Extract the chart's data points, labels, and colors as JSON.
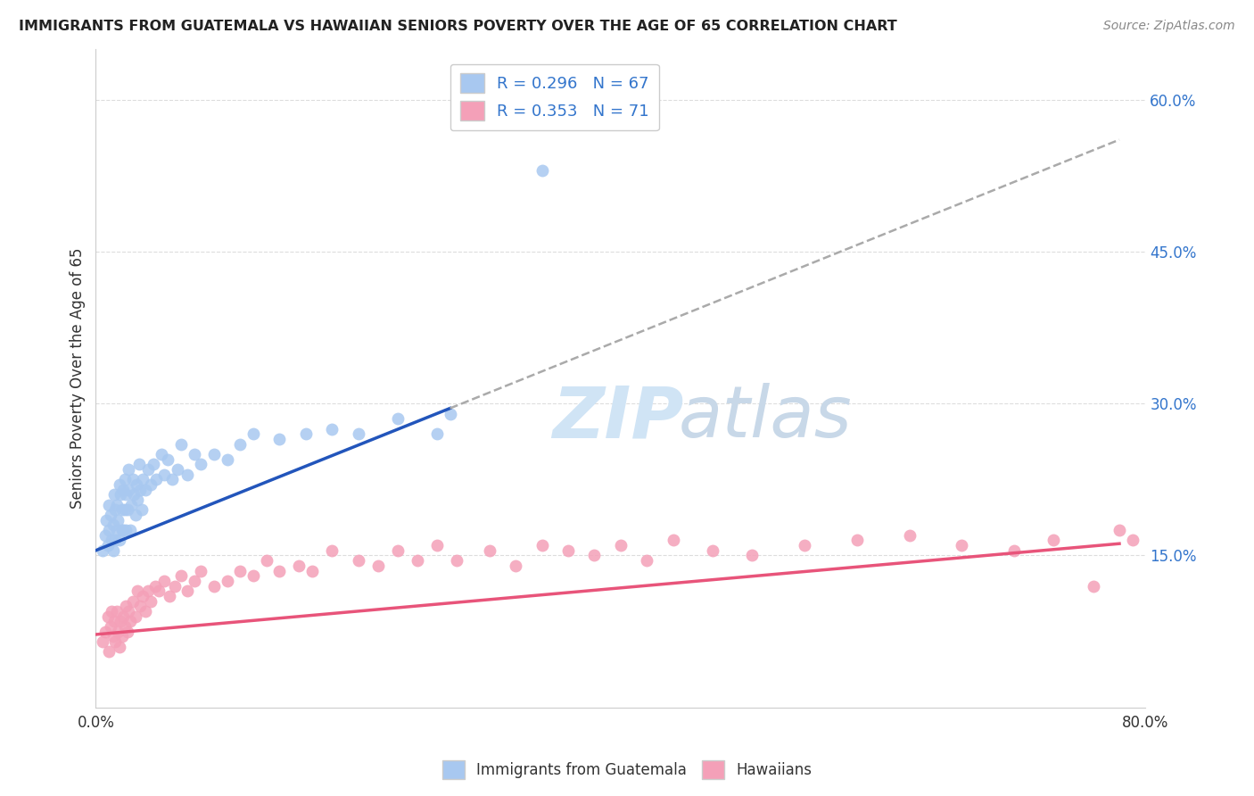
{
  "title": "IMMIGRANTS FROM GUATEMALA VS HAWAIIAN SENIORS POVERTY OVER THE AGE OF 65 CORRELATION CHART",
  "source": "Source: ZipAtlas.com",
  "ylabel": "Seniors Poverty Over the Age of 65",
  "xlim": [
    0.0,
    0.8
  ],
  "ylim": [
    0.0,
    0.65
  ],
  "y_tick_labels_right": [
    "60.0%",
    "45.0%",
    "30.0%",
    "15.0%"
  ],
  "y_ticks_right": [
    0.6,
    0.45,
    0.3,
    0.15
  ],
  "legend_r1": "R = 0.296",
  "legend_n1": "N = 67",
  "legend_r2": "R = 0.353",
  "legend_n2": "N = 71",
  "color_blue": "#A8C8F0",
  "color_pink": "#F4A0B8",
  "line_blue": "#2255BB",
  "line_pink": "#E8547A",
  "line_dashed_color": "#AAAAAA",
  "watermark_zip": "ZIP",
  "watermark_atlas": "atlas",
  "background_color": "#FFFFFF",
  "grid_color": "#DDDDDD",
  "blue_scatter_x": [
    0.005,
    0.007,
    0.008,
    0.009,
    0.01,
    0.01,
    0.011,
    0.012,
    0.013,
    0.013,
    0.014,
    0.015,
    0.015,
    0.016,
    0.016,
    0.017,
    0.018,
    0.018,
    0.019,
    0.02,
    0.02,
    0.021,
    0.021,
    0.022,
    0.022,
    0.023,
    0.023,
    0.024,
    0.025,
    0.025,
    0.026,
    0.027,
    0.028,
    0.029,
    0.03,
    0.031,
    0.032,
    0.033,
    0.034,
    0.035,
    0.036,
    0.038,
    0.04,
    0.042,
    0.044,
    0.046,
    0.05,
    0.052,
    0.055,
    0.058,
    0.062,
    0.065,
    0.07,
    0.075,
    0.08,
    0.09,
    0.1,
    0.11,
    0.12,
    0.14,
    0.16,
    0.18,
    0.2,
    0.23,
    0.26,
    0.27,
    0.34
  ],
  "blue_scatter_y": [
    0.155,
    0.17,
    0.185,
    0.16,
    0.175,
    0.2,
    0.19,
    0.165,
    0.155,
    0.18,
    0.21,
    0.165,
    0.195,
    0.175,
    0.2,
    0.185,
    0.22,
    0.165,
    0.21,
    0.175,
    0.195,
    0.215,
    0.175,
    0.225,
    0.195,
    0.21,
    0.175,
    0.195,
    0.215,
    0.235,
    0.175,
    0.2,
    0.225,
    0.21,
    0.19,
    0.22,
    0.205,
    0.24,
    0.215,
    0.195,
    0.225,
    0.215,
    0.235,
    0.22,
    0.24,
    0.225,
    0.25,
    0.23,
    0.245,
    0.225,
    0.235,
    0.26,
    0.23,
    0.25,
    0.24,
    0.25,
    0.245,
    0.26,
    0.27,
    0.265,
    0.27,
    0.275,
    0.27,
    0.285,
    0.27,
    0.29,
    0.53
  ],
  "pink_scatter_x": [
    0.005,
    0.007,
    0.009,
    0.01,
    0.011,
    0.012,
    0.013,
    0.014,
    0.015,
    0.016,
    0.017,
    0.018,
    0.019,
    0.02,
    0.021,
    0.022,
    0.023,
    0.024,
    0.025,
    0.026,
    0.028,
    0.03,
    0.032,
    0.034,
    0.036,
    0.038,
    0.04,
    0.042,
    0.045,
    0.048,
    0.052,
    0.056,
    0.06,
    0.065,
    0.07,
    0.075,
    0.08,
    0.09,
    0.1,
    0.11,
    0.12,
    0.13,
    0.14,
    0.155,
    0.165,
    0.18,
    0.2,
    0.215,
    0.23,
    0.245,
    0.26,
    0.275,
    0.3,
    0.32,
    0.34,
    0.36,
    0.38,
    0.4,
    0.42,
    0.44,
    0.47,
    0.5,
    0.54,
    0.58,
    0.62,
    0.66,
    0.7,
    0.73,
    0.76,
    0.78,
    0.79
  ],
  "pink_scatter_y": [
    0.065,
    0.075,
    0.09,
    0.055,
    0.08,
    0.095,
    0.07,
    0.085,
    0.065,
    0.095,
    0.075,
    0.06,
    0.085,
    0.07,
    0.09,
    0.08,
    0.1,
    0.075,
    0.095,
    0.085,
    0.105,
    0.09,
    0.115,
    0.1,
    0.11,
    0.095,
    0.115,
    0.105,
    0.12,
    0.115,
    0.125,
    0.11,
    0.12,
    0.13,
    0.115,
    0.125,
    0.135,
    0.12,
    0.125,
    0.135,
    0.13,
    0.145,
    0.135,
    0.14,
    0.135,
    0.155,
    0.145,
    0.14,
    0.155,
    0.145,
    0.16,
    0.145,
    0.155,
    0.14,
    0.16,
    0.155,
    0.15,
    0.16,
    0.145,
    0.165,
    0.155,
    0.15,
    0.16,
    0.165,
    0.17,
    0.16,
    0.155,
    0.165,
    0.12,
    0.175,
    0.165
  ],
  "blue_line_x_end": 0.27,
  "pink_line_x_end": 0.78,
  "blue_line_intercept": 0.155,
  "blue_line_slope": 0.52,
  "pink_line_intercept": 0.072,
  "pink_line_slope": 0.115
}
